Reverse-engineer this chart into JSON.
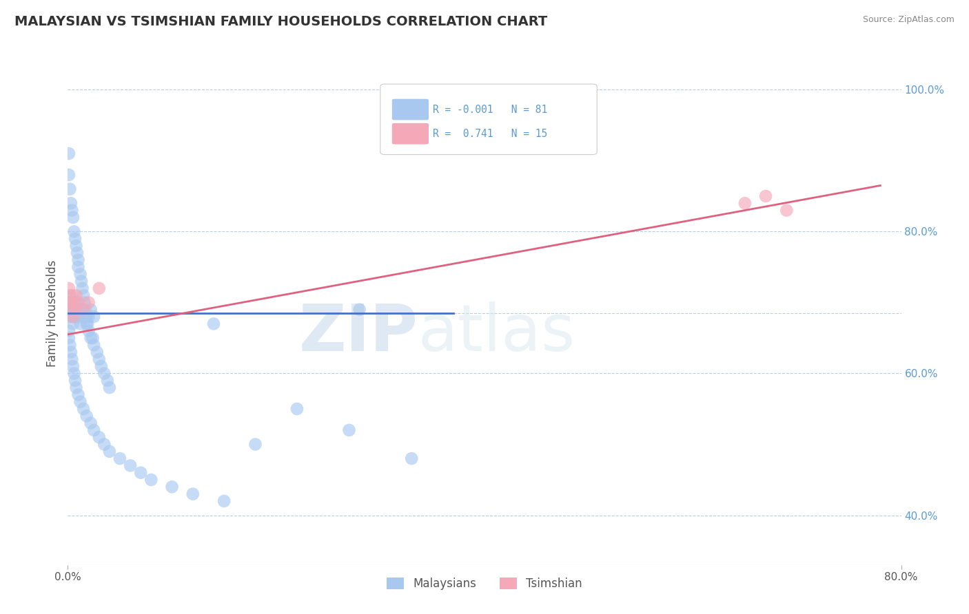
{
  "title": "MALAYSIAN VS TSIMSHIAN FAMILY HOUSEHOLDS CORRELATION CHART",
  "source_text": "Source: ZipAtlas.com",
  "ylabel": "Family Households",
  "xlim": [
    0.0,
    0.8
  ],
  "ylim": [
    0.33,
    1.04
  ],
  "ytick_positions": [
    0.4,
    0.6,
    0.8,
    1.0
  ],
  "ytick_labels": [
    "40.0%",
    "60.0%",
    "80.0%",
    "100.0%"
  ],
  "color_blue": "#a8c8f0",
  "color_pink": "#f4a8b8",
  "color_blue_line": "#4472c4",
  "color_pink_line": "#e06080",
  "watermark_zip": "ZIP",
  "watermark_atlas": "atlas",
  "background_color": "#ffffff",
  "grid_color": "#b8cfe0",
  "malaysian_x": [
    0.001,
    0.001,
    0.002,
    0.003,
    0.004,
    0.005,
    0.006,
    0.007,
    0.008,
    0.009,
    0.01,
    0.01,
    0.012,
    0.013,
    0.014,
    0.015,
    0.016,
    0.017,
    0.018,
    0.019,
    0.02,
    0.022,
    0.024,
    0.025,
    0.028,
    0.03,
    0.032,
    0.035,
    0.038,
    0.04,
    0.001,
    0.001,
    0.002,
    0.002,
    0.003,
    0.003,
    0.004,
    0.005,
    0.006,
    0.007,
    0.008,
    0.009,
    0.01,
    0.012,
    0.014,
    0.016,
    0.018,
    0.02,
    0.022,
    0.025,
    0.001,
    0.001,
    0.002,
    0.003,
    0.004,
    0.005,
    0.006,
    0.007,
    0.008,
    0.01,
    0.012,
    0.015,
    0.018,
    0.022,
    0.025,
    0.03,
    0.035,
    0.04,
    0.05,
    0.06,
    0.07,
    0.08,
    0.1,
    0.12,
    0.15,
    0.18,
    0.22,
    0.27,
    0.33,
    0.14,
    0.28
  ],
  "malaysian_y": [
    0.91,
    0.88,
    0.86,
    0.84,
    0.83,
    0.82,
    0.8,
    0.79,
    0.78,
    0.77,
    0.76,
    0.75,
    0.74,
    0.73,
    0.72,
    0.71,
    0.7,
    0.69,
    0.68,
    0.67,
    0.66,
    0.65,
    0.65,
    0.64,
    0.63,
    0.62,
    0.61,
    0.6,
    0.59,
    0.58,
    0.68,
    0.69,
    0.7,
    0.71,
    0.69,
    0.7,
    0.68,
    0.67,
    0.69,
    0.68,
    0.7,
    0.69,
    0.68,
    0.67,
    0.69,
    0.68,
    0.67,
    0.68,
    0.69,
    0.68,
    0.66,
    0.65,
    0.64,
    0.63,
    0.62,
    0.61,
    0.6,
    0.59,
    0.58,
    0.57,
    0.56,
    0.55,
    0.54,
    0.53,
    0.52,
    0.51,
    0.5,
    0.49,
    0.48,
    0.47,
    0.46,
    0.45,
    0.44,
    0.43,
    0.42,
    0.5,
    0.55,
    0.52,
    0.48,
    0.67,
    0.69
  ],
  "tsimshian_x": [
    0.001,
    0.002,
    0.003,
    0.004,
    0.005,
    0.006,
    0.007,
    0.008,
    0.01,
    0.015,
    0.02,
    0.03,
    0.65,
    0.67,
    0.69
  ],
  "tsimshian_y": [
    0.72,
    0.7,
    0.69,
    0.71,
    0.68,
    0.7,
    0.69,
    0.71,
    0.7,
    0.69,
    0.7,
    0.72,
    0.84,
    0.85,
    0.83
  ],
  "blue_line_x": [
    0.0,
    0.37
  ],
  "blue_line_y": [
    0.685,
    0.685
  ],
  "pink_line_x": [
    0.0,
    0.78
  ],
  "pink_line_y": [
    0.655,
    0.865
  ]
}
